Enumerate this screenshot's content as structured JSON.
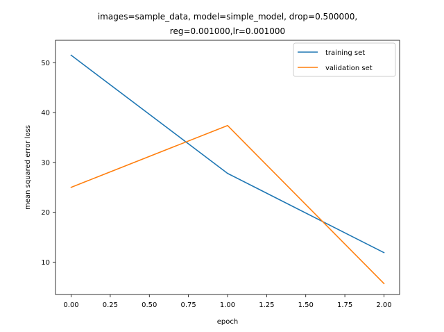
{
  "chart_data": {
    "type": "line",
    "title_lines": [
      "images=sample_data, model=simple_model, drop=0.500000,",
      "reg=0.001000,lr=0.001000"
    ],
    "xlabel": "epoch",
    "ylabel": "mean squared error loss",
    "x": [
      0.0,
      1.0,
      2.0
    ],
    "xlim": [
      -0.1,
      2.1
    ],
    "ylim": [
      3.5,
      54.5
    ],
    "xticks": [
      0.0,
      0.25,
      0.5,
      0.75,
      1.0,
      1.25,
      1.5,
      1.75,
      2.0
    ],
    "xtick_labels": [
      "0.00",
      "0.25",
      "0.50",
      "0.75",
      "1.00",
      "1.25",
      "1.50",
      "1.75",
      "2.00"
    ],
    "yticks": [
      10,
      20,
      30,
      40,
      50
    ],
    "ytick_labels": [
      "10",
      "20",
      "30",
      "40",
      "50"
    ],
    "grid": false,
    "legend_position": "upper-right",
    "series": [
      {
        "name": "training set",
        "values": [
          51.5,
          27.8,
          11.9
        ],
        "color": "#1f77b4"
      },
      {
        "name": "validation set",
        "values": [
          25.0,
          37.4,
          5.7
        ],
        "color": "#ff7f0e"
      }
    ]
  }
}
